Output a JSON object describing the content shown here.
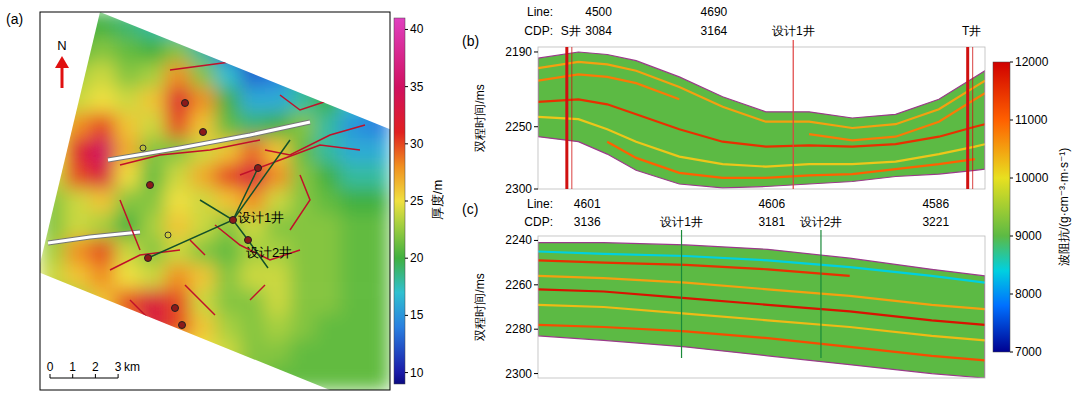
{
  "chart_data": [
    {
      "type": "heatmap",
      "label": "(a)",
      "north": "N",
      "cells": [
        [
          20,
          20,
          20,
          19,
          18,
          17,
          14,
          12,
          11,
          12,
          14,
          15,
          16,
          18
        ],
        [
          21,
          21,
          22,
          21,
          20,
          22,
          18,
          13,
          11,
          12,
          15,
          16,
          18,
          20
        ],
        [
          22,
          23,
          24,
          22,
          23,
          28,
          22,
          17,
          13,
          14,
          18,
          20,
          20,
          18
        ],
        [
          23,
          24,
          25,
          24,
          26,
          32,
          28,
          20,
          16,
          16,
          18,
          20,
          17,
          15
        ],
        [
          24,
          28,
          30,
          26,
          24,
          30,
          26,
          21,
          19,
          20,
          22,
          18,
          15,
          14
        ],
        [
          25,
          32,
          35,
          27,
          22,
          22,
          24,
          26,
          29,
          26,
          21,
          18,
          16,
          16
        ],
        [
          24,
          30,
          33,
          25,
          21,
          24,
          27,
          30,
          33,
          28,
          22,
          20,
          18,
          18
        ],
        [
          22,
          24,
          26,
          22,
          22,
          25,
          24,
          26,
          28,
          24,
          22,
          21,
          20,
          20
        ],
        [
          22,
          24,
          23,
          20,
          23,
          26,
          24,
          22,
          24,
          22,
          22,
          22,
          21,
          21
        ],
        [
          23,
          28,
          30,
          24,
          22,
          24,
          22,
          21,
          23,
          23,
          22,
          22,
          21,
          21
        ],
        [
          24,
          26,
          28,
          25,
          24,
          28,
          26,
          22,
          24,
          24,
          22,
          22,
          21,
          21
        ],
        [
          22,
          23,
          26,
          30,
          33,
          30,
          24,
          22,
          22,
          24,
          22,
          22,
          21,
          21
        ],
        [
          21,
          22,
          24,
          28,
          33,
          30,
          26,
          23,
          22,
          23,
          22,
          21,
          21,
          21
        ],
        [
          21,
          21,
          22,
          24,
          26,
          25,
          25,
          24,
          22,
          22,
          21,
          21,
          21,
          21
        ],
        [
          21,
          21,
          21,
          22,
          22,
          22,
          22,
          22,
          22,
          21,
          21,
          21,
          21,
          21
        ]
      ],
      "colorbar": {
        "title": "厚度/m",
        "range": [
          9,
          41
        ],
        "ticks": [
          10,
          15,
          20,
          25,
          30,
          35,
          40
        ]
      },
      "wells": [
        {
          "name": "设计1井"
        },
        {
          "name": "设计2井"
        }
      ],
      "scale_bar": {
        "ticks": [
          0,
          1,
          2,
          3
        ],
        "unit": "km"
      }
    },
    {
      "type": "section",
      "label": "(b)",
      "ylabel": "双程时间/ms",
      "ylim": [
        2186,
        2300
      ],
      "yticks": [
        2190,
        2250,
        2300
      ],
      "xlim": [
        3042,
        3352
      ],
      "line_title": "Line:",
      "cdp_title": "CDP:",
      "xticks": [
        3084,
        3164
      ],
      "line_numbers": [
        4500,
        4690
      ],
      "wells": [
        {
          "name": "S井",
          "cdp": 3062,
          "color": "#d01010",
          "type": "log"
        },
        {
          "name": "设计1井",
          "cdp": 3219,
          "color": "#e04040",
          "type": "design"
        },
        {
          "name": "T井",
          "cdp": 3340,
          "color": "#d01010",
          "type": "log"
        }
      ],
      "cdp": [
        3042,
        3070,
        3090,
        3110,
        3140,
        3170,
        3200,
        3230,
        3260,
        3290,
        3320,
        3345,
        3352
      ],
      "top": [
        2195,
        2190,
        2192,
        2197,
        2210,
        2226,
        2238,
        2238,
        2243,
        2240,
        2228,
        2210,
        2205
      ],
      "base": [
        2258,
        2262,
        2272,
        2285,
        2296,
        2299,
        2298,
        2296,
        2294,
        2290,
        2288,
        2285,
        2284
      ],
      "background": 9000,
      "layers": [
        {
          "impedance": 10500,
          "values": [
            2203,
            2198,
            2200,
            2205,
            2218,
            2234,
            2246,
            2246,
            2251,
            2248,
            2236,
            2218,
            2213
          ]
        },
        {
          "impedance": 10800,
          "values": [
            2213,
            2208,
            2210,
            2215,
            2228,
            null,
            null,
            2256,
            2261,
            2258,
            2246,
            2228,
            2223
          ]
        },
        {
          "impedance": 11500,
          "values": [
            2230,
            2228,
            2232,
            2240,
            2252,
            2262,
            2266,
            2265,
            2266,
            2264,
            2258,
            2250,
            2248
          ]
        },
        {
          "impedance": 10200,
          "values": [
            2242,
            2244,
            2252,
            2262,
            2274,
            2280,
            2282,
            2280,
            2280,
            2278,
            2272,
            2266,
            2264
          ]
        },
        {
          "impedance": 11000,
          "values": [
            null,
            null,
            2262,
            2275,
            2287,
            2291,
            2291,
            2289,
            2288,
            2284,
            2280,
            2276,
            null
          ]
        }
      ],
      "colorbar": {
        "title": "波阻抗/(g·cm⁻³·m·s⁻¹)",
        "range": [
          7000,
          12000
        ],
        "ticks": [
          7000,
          8000,
          9000,
          10000,
          11000,
          12000
        ]
      }
    },
    {
      "type": "section",
      "label": "(c)",
      "ylabel": "双程时间/ms",
      "ylim": [
        2238,
        2302
      ],
      "yticks": [
        2240,
        2260,
        2280,
        2300
      ],
      "xlim": [
        3124,
        3233
      ],
      "line_title": "Line:",
      "cdp_title": "CDP:",
      "xticks": [
        3136,
        3181,
        3221
      ],
      "line_numbers": [
        4601,
        4606,
        4586
      ],
      "wells": [
        {
          "name": "设计1井",
          "cdp": 3159,
          "color": "#1a8a3a",
          "type": "design"
        },
        {
          "name": "设计2井",
          "cdp": 3193,
          "color": "#1a8a3a",
          "type": "design"
        }
      ],
      "cdp": [
        3124,
        3140,
        3160,
        3180,
        3200,
        3220,
        3233
      ],
      "top": [
        2241,
        2241,
        2242,
        2244,
        2248,
        2253,
        2256
      ],
      "base": [
        2283,
        2285,
        2288,
        2292,
        2296,
        2300,
        2302
      ],
      "background": 9000,
      "layers": [
        {
          "impedance": 8400,
          "values": [
            2245,
            2246,
            2247,
            2249,
            2252,
            2256,
            2259
          ]
        },
        {
          "impedance": 11500,
          "values": [
            2249,
            2250,
            2251,
            2253,
            2256,
            null,
            null
          ]
        },
        {
          "impedance": 10500,
          "values": [
            2256,
            2257,
            2259,
            2262,
            2265,
            2269,
            2271
          ]
        },
        {
          "impedance": 11800,
          "values": [
            2262,
            2263,
            2266,
            2269,
            2272,
            2276,
            2278
          ]
        },
        {
          "impedance": 10300,
          "values": [
            2269,
            2270,
            2273,
            2276,
            2279,
            2283,
            2285
          ]
        },
        {
          "impedance": 11200,
          "values": [
            2278,
            2279,
            2281,
            2284,
            2288,
            2292,
            2294
          ]
        }
      ]
    }
  ]
}
